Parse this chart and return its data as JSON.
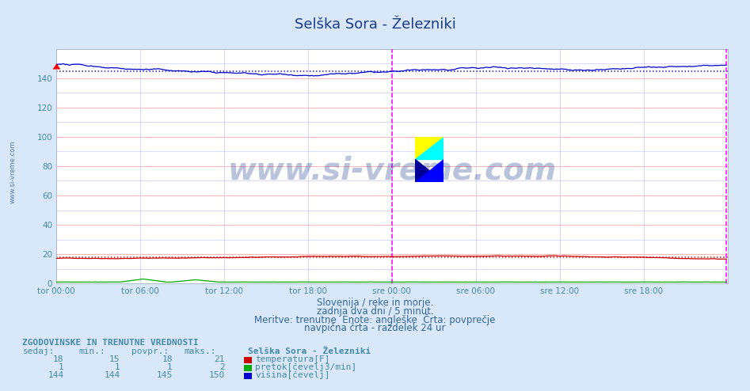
{
  "title": "Selška Sora - Železniki",
  "background_color": "#d8e8f8",
  "plot_bg_color": "#ffffff",
  "grid_color_h": "#ffaaaa",
  "grid_color_v": "#ccccff",
  "xlim": [
    0,
    576
  ],
  "ylim": [
    0,
    160
  ],
  "yticks": [
    0,
    20,
    40,
    60,
    80,
    100,
    120,
    140
  ],
  "xtick_labels": [
    "tor 00:00",
    "tor 06:00",
    "tor 12:00",
    "tor 18:00",
    "sre 00:00",
    "sre 06:00",
    "sre 12:00",
    "sre 18:00"
  ],
  "xtick_positions": [
    0,
    72,
    144,
    216,
    288,
    360,
    432,
    504
  ],
  "n_points": 576,
  "temp_base": 17.0,
  "temp_avg": 18.0,
  "height_avg": 145.0,
  "magenta_line_x": 288,
  "subtitle1": "Slovenija / reke in morje.",
  "subtitle2": "zadnja dva dni / 5 minut.",
  "subtitle3": "Meritve: trenutne  Enote: angleške  Črta: povprečje",
  "subtitle4": "navpična črta - razdelek 24 ur",
  "legend_title": "Selška Sora - Železniki",
  "legend_entries": [
    "temperatura[F]",
    "pretok[čevelj3/min]",
    "višina[čevelj]"
  ],
  "legend_colors": [
    "#cc0000",
    "#00aa00",
    "#0000cc"
  ],
  "table_header": "ZGODOVINSKE IN TRENUTNE VREDNOSTI",
  "table_cols": [
    "sedaj:",
    "min.:",
    "povpr.:",
    "maks.:"
  ],
  "table_row1": [
    "18",
    "15",
    "18",
    "21"
  ],
  "table_row2": [
    "1",
    "1",
    "1",
    "2"
  ],
  "table_row3": [
    "144",
    "144",
    "145",
    "150"
  ],
  "watermark_text": "www.si-vreme.com",
  "watermark_color": "#1a3a8a",
  "watermark_alpha": 0.3,
  "axis_label_color": "#4488aa",
  "title_color": "#1a3a8a",
  "subtitle_color": "#336699",
  "temp_color": "#cc0000",
  "flow_color": "#00aa00",
  "height_color": "#0000cc"
}
